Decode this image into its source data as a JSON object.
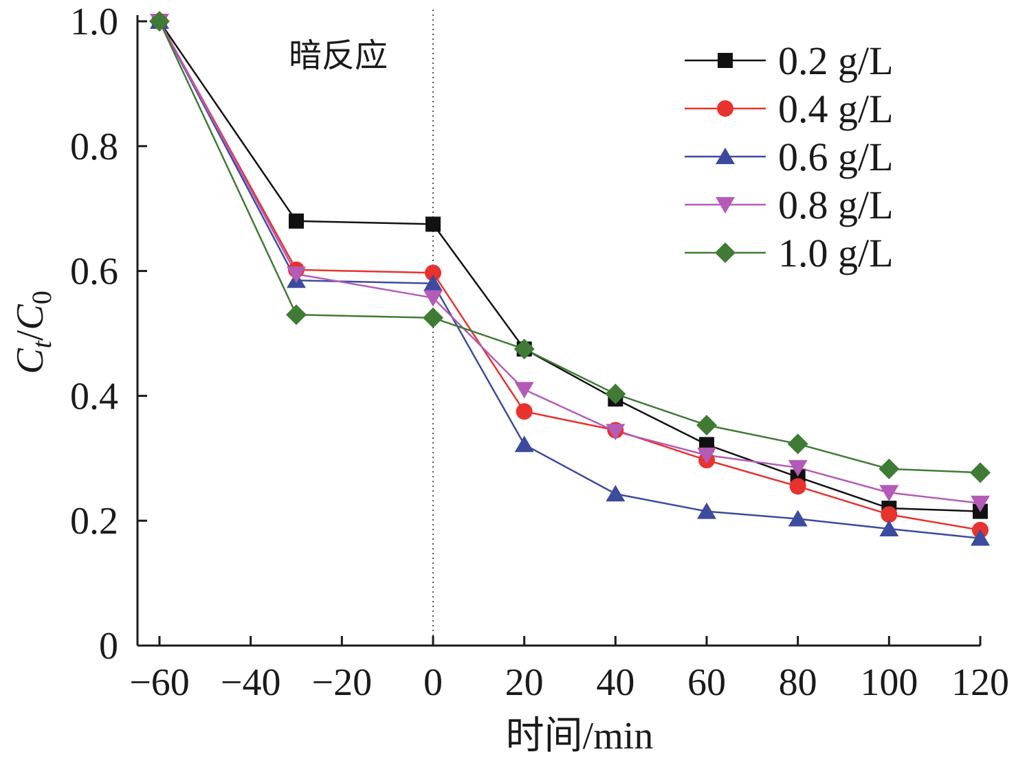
{
  "chart_data": {
    "type": "line",
    "xlabel": "时间/min",
    "ylabel": "C_t/C_0",
    "xlim": [
      -65,
      120
    ],
    "ylim": [
      0,
      1.0
    ],
    "x_ticks": [
      "−60",
      "−40",
      "−20",
      "0",
      "20",
      "40",
      "60",
      "80",
      "100",
      "120"
    ],
    "x_tick_values": [
      -60,
      -40,
      -20,
      0,
      20,
      40,
      60,
      80,
      100,
      120
    ],
    "y_ticks": [
      "0",
      "0.2",
      "0.4",
      "0.6",
      "0.8",
      "1.0"
    ],
    "y_tick_values": [
      0,
      0.2,
      0.4,
      0.6,
      0.8,
      1.0
    ],
    "annotation": "暗反应",
    "annotation_line_x": 0,
    "legend_position": "top-right",
    "x": [
      -60,
      -30,
      0,
      20,
      40,
      60,
      80,
      100,
      120
    ],
    "series": [
      {
        "name": "0.2 g/L",
        "color": "#111111",
        "marker": "square",
        "values": [
          1.0,
          0.68,
          0.675,
          0.475,
          0.395,
          0.322,
          0.27,
          0.22,
          0.215
        ]
      },
      {
        "name": "0.4 g/L",
        "color": "#e8322e",
        "marker": "circle",
        "values": [
          1.0,
          0.602,
          0.597,
          0.375,
          0.345,
          0.297,
          0.255,
          0.21,
          0.185
        ]
      },
      {
        "name": "0.6 g/L",
        "color": "#3c4b9d",
        "marker": "triangle-up",
        "values": [
          1.0,
          0.585,
          0.58,
          0.322,
          0.243,
          0.215,
          0.203,
          0.187,
          0.172
        ]
      },
      {
        "name": "0.8 g/L",
        "color": "#b45bb8",
        "marker": "triangle-down",
        "values": [
          1.0,
          0.595,
          0.557,
          0.41,
          0.343,
          0.305,
          0.285,
          0.245,
          0.228
        ]
      },
      {
        "name": "1.0 g/L",
        "color": "#3f7b34",
        "marker": "diamond",
        "values": [
          1.0,
          0.53,
          0.525,
          0.475,
          0.403,
          0.353,
          0.323,
          0.283,
          0.277
        ]
      }
    ]
  }
}
